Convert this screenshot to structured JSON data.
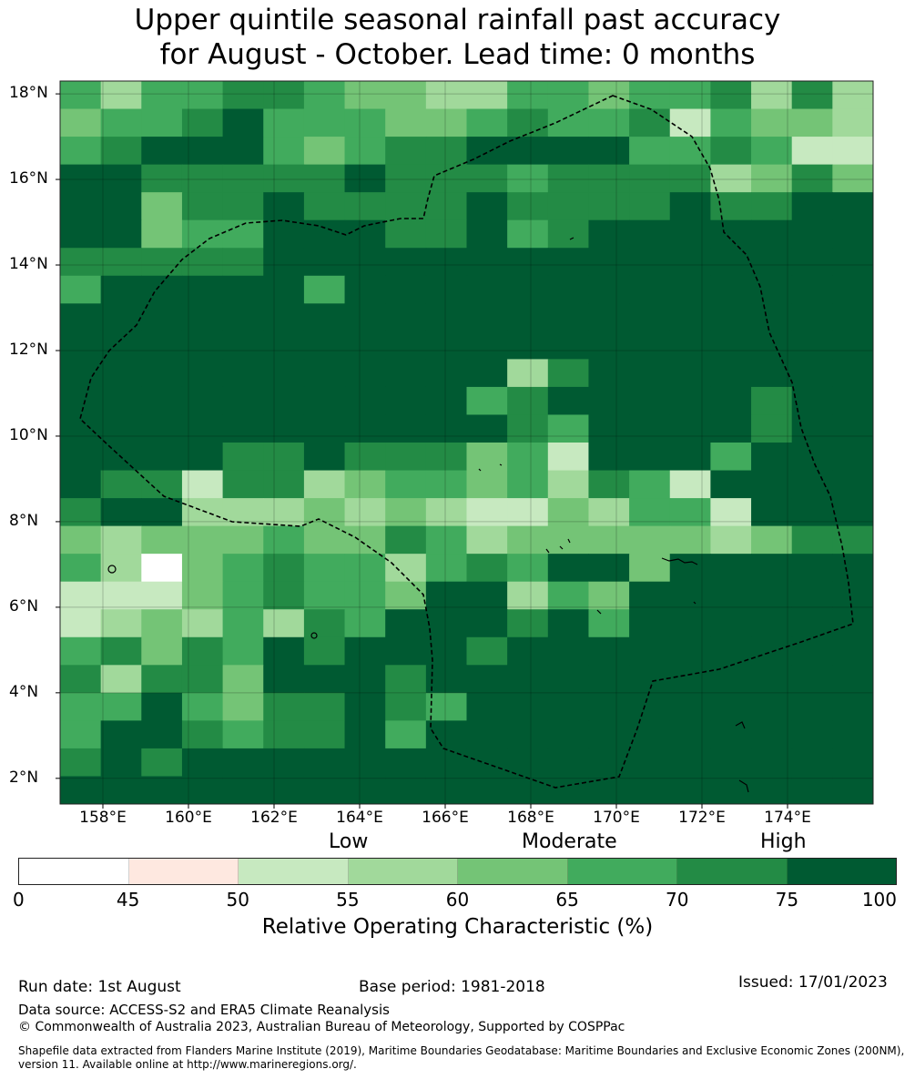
{
  "title": {
    "line1": "Upper quintile seasonal rainfall past accuracy",
    "line2": "for August - October. Lead time: 0 months"
  },
  "map": {
    "lat_range": [
      1.4,
      18.3
    ],
    "lon_range": [
      157.0,
      176.0
    ],
    "grid_resolution_deg": 0.84,
    "y_ticks": [
      {
        "lat": 18,
        "label": "18°N"
      },
      {
        "lat": 16,
        "label": "16°N"
      },
      {
        "lat": 14,
        "label": "14°N"
      },
      {
        "lat": 12,
        "label": "12°N"
      },
      {
        "lat": 10,
        "label": "10°N"
      },
      {
        "lat": 8,
        "label": "8°N"
      },
      {
        "lat": 6,
        "label": "6°N"
      },
      {
        "lat": 4,
        "label": "4°N"
      },
      {
        "lat": 2,
        "label": "2°N"
      }
    ],
    "x_ticks": [
      {
        "lon": 158,
        "label": "158°E"
      },
      {
        "lon": 160,
        "label": "160°E"
      },
      {
        "lon": 162,
        "label": "162°E"
      },
      {
        "lon": 164,
        "label": "164°E"
      },
      {
        "lon": 166,
        "label": "166°E"
      },
      {
        "lon": 168,
        "label": "168°E"
      },
      {
        "lon": 170,
        "label": "170°E"
      },
      {
        "lon": 172,
        "label": "172°E"
      },
      {
        "lon": 174,
        "label": "174°E"
      }
    ],
    "default_class": 7,
    "grid_rows": [
      "53556654433554556363",
      "45567555445655625443",
      "56777545667777556522",
      "77666667666566663464",
      "77466766667666676677",
      "77455777667567777777",
      "66666777777777777777",
      "77777777777777777777",
      "77777777777777777777",
      "77777777777777777777",
      "77777777777777777777",
      "77777777777777777777",
      "77777777777777777777",
      "77777777777777777777",
      "77777777377777777777",
      "77777777777577777777",
      "77777777777577777777",
      "77777777777577777777",
      "77777777777777777777",
      "77777777777777777777",
      "77777777777777777777",
      "77777777666667777767",
      "77777777777777777777",
      "77777777777777777777",
      "77777777777777777777",
      "77777777777777777777"
    ],
    "grid_overrides": [
      {
        "row": 7,
        "col": 0,
        "cls": 5
      },
      {
        "row": 7,
        "col": 6,
        "cls": 5
      },
      {
        "row": 10,
        "col": 11,
        "cls": 3
      },
      {
        "row": 10,
        "col": 12,
        "cls": 6
      },
      {
        "row": 11,
        "col": 10,
        "cls": 5
      },
      {
        "row": 11,
        "col": 11,
        "cls": 6
      },
      {
        "row": 12,
        "col": 11,
        "cls": 6
      },
      {
        "row": 12,
        "col": 12,
        "cls": 5
      },
      {
        "row": 11,
        "col": 17,
        "cls": 6
      },
      {
        "row": 12,
        "col": 17,
        "cls": 6
      },
      {
        "row": 13,
        "col": 4,
        "cls": 6
      },
      {
        "row": 13,
        "col": 5,
        "cls": 6
      },
      {
        "row": 13,
        "col": 7,
        "cls": 6
      },
      {
        "row": 13,
        "col": 8,
        "cls": 6
      },
      {
        "row": 13,
        "col": 9,
        "cls": 6
      },
      {
        "row": 13,
        "col": 10,
        "cls": 4
      },
      {
        "row": 13,
        "col": 11,
        "cls": 5
      },
      {
        "row": 13,
        "col": 12,
        "cls": 2
      },
      {
        "row": 13,
        "col": 16,
        "cls": 5
      },
      {
        "row": 14,
        "col": 1,
        "cls": 6
      },
      {
        "row": 14,
        "col": 2,
        "cls": 6
      },
      {
        "row": 14,
        "col": 3,
        "cls": 2
      },
      {
        "row": 14,
        "col": 4,
        "cls": 6
      },
      {
        "row": 14,
        "col": 5,
        "cls": 6
      },
      {
        "row": 14,
        "col": 6,
        "cls": 3
      },
      {
        "row": 14,
        "col": 7,
        "cls": 4
      },
      {
        "row": 14,
        "col": 8,
        "cls": 5
      },
      {
        "row": 14,
        "col": 9,
        "cls": 5
      },
      {
        "row": 14,
        "col": 10,
        "cls": 4
      },
      {
        "row": 14,
        "col": 11,
        "cls": 5
      },
      {
        "row": 14,
        "col": 12,
        "cls": 3
      },
      {
        "row": 14,
        "col": 13,
        "cls": 6
      },
      {
        "row": 14,
        "col": 14,
        "cls": 5
      },
      {
        "row": 14,
        "col": 15,
        "cls": 2
      },
      {
        "row": 15,
        "col": 0,
        "cls": 6
      },
      {
        "row": 15,
        "col": 2,
        "cls": 7
      },
      {
        "row": 15,
        "col": 3,
        "cls": 3
      },
      {
        "row": 15,
        "col": 4,
        "cls": 3
      },
      {
        "row": 15,
        "col": 5,
        "cls": 3
      },
      {
        "row": 15,
        "col": 6,
        "cls": 4
      },
      {
        "row": 15,
        "col": 7,
        "cls": 3
      },
      {
        "row": 15,
        "col": 8,
        "cls": 4
      },
      {
        "row": 15,
        "col": 9,
        "cls": 3
      },
      {
        "row": 15,
        "col": 10,
        "cls": 2
      },
      {
        "row": 15,
        "col": 11,
        "cls": 2
      },
      {
        "row": 15,
        "col": 12,
        "cls": 4
      },
      {
        "row": 15,
        "col": 13,
        "cls": 3
      },
      {
        "row": 15,
        "col": 14,
        "cls": 5
      },
      {
        "row": 15,
        "col": 15,
        "cls": 5
      },
      {
        "row": 15,
        "col": 16,
        "cls": 2
      },
      {
        "row": 15,
        "col": 17,
        "cls": 7
      },
      {
        "row": 16,
        "col": 0,
        "cls": 4
      },
      {
        "row": 16,
        "col": 1,
        "cls": 3
      },
      {
        "row": 16,
        "col": 2,
        "cls": 4
      },
      {
        "row": 16,
        "col": 3,
        "cls": 4
      },
      {
        "row": 16,
        "col": 4,
        "cls": 4
      },
      {
        "row": 16,
        "col": 5,
        "cls": 5
      },
      {
        "row": 16,
        "col": 6,
        "cls": 4
      },
      {
        "row": 16,
        "col": 7,
        "cls": 4
      },
      {
        "row": 16,
        "col": 8,
        "cls": 6
      },
      {
        "row": 16,
        "col": 9,
        "cls": 5
      },
      {
        "row": 16,
        "col": 10,
        "cls": 3
      },
      {
        "row": 16,
        "col": 11,
        "cls": 4
      },
      {
        "row": 16,
        "col": 12,
        "cls": 4
      },
      {
        "row": 16,
        "col": 13,
        "cls": 4
      },
      {
        "row": 16,
        "col": 14,
        "cls": 4
      },
      {
        "row": 16,
        "col": 15,
        "cls": 4
      },
      {
        "row": 16,
        "col": 16,
        "cls": 3
      },
      {
        "row": 16,
        "col": 17,
        "cls": 4
      },
      {
        "row": 16,
        "col": 18,
        "cls": 6
      },
      {
        "row": 16,
        "col": 19,
        "cls": 6
      },
      {
        "row": 17,
        "col": 0,
        "cls": 5
      },
      {
        "row": 17,
        "col": 1,
        "cls": 3
      },
      {
        "row": 17,
        "col": 2,
        "cls": 0
      },
      {
        "row": 17,
        "col": 3,
        "cls": 4
      },
      {
        "row": 17,
        "col": 4,
        "cls": 5
      },
      {
        "row": 17,
        "col": 5,
        "cls": 6
      },
      {
        "row": 17,
        "col": 6,
        "cls": 5
      },
      {
        "row": 17,
        "col": 7,
        "cls": 5
      },
      {
        "row": 17,
        "col": 8,
        "cls": 3
      },
      {
        "row": 17,
        "col": 9,
        "cls": 5
      },
      {
        "row": 17,
        "col": 10,
        "cls": 6
      },
      {
        "row": 17,
        "col": 11,
        "cls": 5
      },
      {
        "row": 17,
        "col": 14,
        "cls": 4
      },
      {
        "row": 18,
        "col": 0,
        "cls": 2
      },
      {
        "row": 18,
        "col": 1,
        "cls": 2
      },
      {
        "row": 18,
        "col": 2,
        "cls": 2
      },
      {
        "row": 18,
        "col": 3,
        "cls": 4
      },
      {
        "row": 18,
        "col": 4,
        "cls": 5
      },
      {
        "row": 18,
        "col": 5,
        "cls": 6
      },
      {
        "row": 18,
        "col": 6,
        "cls": 5
      },
      {
        "row": 18,
        "col": 7,
        "cls": 5
      },
      {
        "row": 18,
        "col": 8,
        "cls": 4
      },
      {
        "row": 18,
        "col": 11,
        "cls": 3
      },
      {
        "row": 18,
        "col": 12,
        "cls": 5
      },
      {
        "row": 18,
        "col": 13,
        "cls": 4
      },
      {
        "row": 19,
        "col": 0,
        "cls": 2
      },
      {
        "row": 19,
        "col": 1,
        "cls": 3
      },
      {
        "row": 19,
        "col": 2,
        "cls": 4
      },
      {
        "row": 19,
        "col": 3,
        "cls": 3
      },
      {
        "row": 19,
        "col": 4,
        "cls": 5
      },
      {
        "row": 19,
        "col": 5,
        "cls": 3
      },
      {
        "row": 19,
        "col": 6,
        "cls": 6
      },
      {
        "row": 19,
        "col": 7,
        "cls": 5
      },
      {
        "row": 19,
        "col": 11,
        "cls": 6
      },
      {
        "row": 19,
        "col": 13,
        "cls": 5
      },
      {
        "row": 20,
        "col": 0,
        "cls": 5
      },
      {
        "row": 20,
        "col": 1,
        "cls": 6
      },
      {
        "row": 20,
        "col": 2,
        "cls": 4
      },
      {
        "row": 20,
        "col": 3,
        "cls": 6
      },
      {
        "row": 20,
        "col": 4,
        "cls": 5
      },
      {
        "row": 20,
        "col": 6,
        "cls": 6
      },
      {
        "row": 20,
        "col": 10,
        "cls": 6
      },
      {
        "row": 21,
        "col": 0,
        "cls": 6
      },
      {
        "row": 21,
        "col": 1,
        "cls": 3
      },
      {
        "row": 21,
        "col": 2,
        "cls": 6
      },
      {
        "row": 21,
        "col": 3,
        "cls": 6
      },
      {
        "row": 21,
        "col": 4,
        "cls": 4
      },
      {
        "row": 21,
        "col": 5,
        "cls": 7
      },
      {
        "row": 21,
        "col": 6,
        "cls": 7
      },
      {
        "row": 21,
        "col": 7,
        "cls": 7
      },
      {
        "row": 21,
        "col": 8,
        "cls": 6
      },
      {
        "row": 21,
        "col": 9,
        "cls": 7
      },
      {
        "row": 21,
        "col": 10,
        "cls": 7
      },
      {
        "row": 21,
        "col": 11,
        "cls": 7
      },
      {
        "row": 21,
        "col": 12,
        "cls": 7
      },
      {
        "row": 21,
        "col": 18,
        "cls": 7
      },
      {
        "row": 22,
        "col": 0,
        "cls": 5
      },
      {
        "row": 22,
        "col": 1,
        "cls": 5
      },
      {
        "row": 22,
        "col": 2,
        "cls": 7
      },
      {
        "row": 22,
        "col": 3,
        "cls": 5
      },
      {
        "row": 22,
        "col": 4,
        "cls": 4
      },
      {
        "row": 22,
        "col": 5,
        "cls": 6
      },
      {
        "row": 22,
        "col": 6,
        "cls": 6
      },
      {
        "row": 22,
        "col": 8,
        "cls": 6
      },
      {
        "row": 22,
        "col": 9,
        "cls": 5
      },
      {
        "row": 23,
        "col": 0,
        "cls": 5
      },
      {
        "row": 23,
        "col": 3,
        "cls": 6
      },
      {
        "row": 23,
        "col": 4,
        "cls": 5
      },
      {
        "row": 23,
        "col": 5,
        "cls": 6
      },
      {
        "row": 23,
        "col": 6,
        "cls": 6
      },
      {
        "row": 23,
        "col": 8,
        "cls": 5
      },
      {
        "row": 24,
        "col": 0,
        "cls": 6
      },
      {
        "row": 24,
        "col": 2,
        "cls": 6
      }
    ]
  },
  "colorbar": {
    "colors": [
      "#ffffff",
      "#fee8e0",
      "#c7e9c0",
      "#a1d99b",
      "#74c476",
      "#41ab5d",
      "#238b45",
      "#005a32"
    ],
    "ticks": [
      "0",
      "45",
      "50",
      "55",
      "60",
      "65",
      "70",
      "75",
      "100"
    ],
    "categories": [
      "Low",
      "Moderate",
      "High"
    ],
    "label": "Relative Operating Characteristic (%)"
  },
  "footer": {
    "run_date": "Run date: 1st August",
    "base_period": "Base period: 1981-2018",
    "issued": "Issued: 17/01/2023",
    "data_source": "Data source: ACCESS-S2 and ERA5 Climate Reanalysis",
    "copyright": "© Commonwealth of Australia 2023, Australian Bureau of Meteorology, Supported by COSPPac",
    "shapefile": "Shapefile data extracted from Flanders Marine Institute (2019), Maritime Boundaries Geodatabase: Maritime Boundaries and Exclusive Economic Zones (200NM), version 11. Available online at http://www.marineregions.org/."
  }
}
